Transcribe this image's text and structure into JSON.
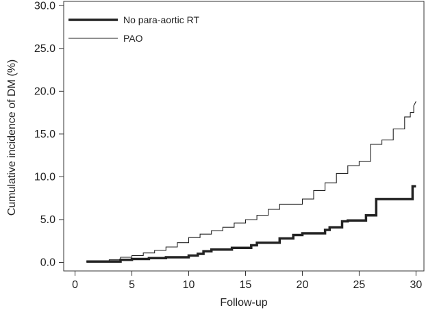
{
  "chart_data": {
    "type": "line",
    "title": "",
    "xlabel": "Follow-up",
    "ylabel": "Cumulative incidence of DM (%)",
    "xlim": [
      -1,
      30.7
    ],
    "ylim": [
      -1.0,
      30.5
    ],
    "xticks": [
      0,
      5,
      10,
      15,
      20,
      25,
      30
    ],
    "yticks": [
      0.0,
      5.0,
      10.0,
      15.0,
      20.0,
      25.0,
      30.0
    ],
    "xtick_labels": [
      "0",
      "5",
      "10",
      "15",
      "20",
      "25",
      "30"
    ],
    "ytick_labels": [
      "0.0",
      "5.0",
      "10.0",
      "15.0",
      "20.0",
      "25.0",
      "30.0"
    ],
    "grid": false,
    "legend_position": "top-left",
    "series": [
      {
        "name": "No para-aortic RT",
        "style": "thick",
        "color": "#222222",
        "x": [
          1.0,
          4.0,
          4.0,
          5.0,
          5.0,
          6.5,
          6.5,
          8.0,
          8.0,
          10.0,
          10.0,
          10.8,
          10.8,
          11.3,
          11.3,
          12.0,
          12.0,
          13.8,
          13.8,
          15.5,
          15.5,
          16.0,
          16.0,
          18.0,
          18.0,
          19.2,
          19.2,
          20.0,
          20.0,
          22.0,
          22.0,
          22.4,
          22.4,
          23.5,
          23.5,
          24.0,
          24.0,
          25.6,
          25.6,
          26.5,
          26.5,
          29.7,
          29.7,
          30.0
        ],
        "y": [
          0.1,
          0.1,
          0.3,
          0.3,
          0.4,
          0.4,
          0.5,
          0.5,
          0.6,
          0.6,
          0.8,
          0.8,
          1.0,
          1.0,
          1.3,
          1.3,
          1.5,
          1.5,
          1.7,
          1.7,
          2.0,
          2.0,
          2.3,
          2.3,
          2.8,
          2.8,
          3.2,
          3.2,
          3.4,
          3.4,
          3.8,
          3.8,
          4.1,
          4.1,
          4.8,
          4.8,
          4.9,
          4.9,
          5.5,
          5.5,
          7.4,
          7.4,
          8.9,
          8.9
        ]
      },
      {
        "name": "PAO",
        "style": "thin",
        "color": "#222222",
        "x": [
          1.0,
          3.0,
          3.0,
          4.0,
          4.0,
          5.0,
          5.0,
          6.0,
          6.0,
          7.0,
          7.0,
          8.0,
          8.0,
          9.0,
          9.0,
          10.0,
          10.0,
          11.0,
          11.0,
          12.0,
          12.0,
          13.0,
          13.0,
          14.0,
          14.0,
          15.0,
          15.0,
          16.0,
          16.0,
          17.0,
          17.0,
          18.0,
          18.0,
          19.0,
          19.0,
          20.0,
          20.0,
          21.0,
          21.0,
          22.0,
          22.0,
          23.0,
          23.0,
          24.0,
          24.0,
          25.0,
          25.0,
          26.0,
          26.0,
          27.0,
          27.0,
          28.0,
          28.0,
          29.0,
          29.0,
          29.5,
          29.5,
          29.8,
          29.8,
          30.0
        ],
        "y": [
          0.1,
          0.1,
          0.3,
          0.3,
          0.6,
          0.6,
          0.8,
          0.8,
          1.1,
          1.1,
          1.4,
          1.4,
          1.8,
          1.8,
          2.3,
          2.3,
          2.9,
          2.9,
          3.3,
          3.3,
          3.7,
          3.7,
          4.1,
          4.1,
          4.6,
          4.6,
          5.0,
          5.0,
          5.5,
          5.5,
          6.2,
          6.2,
          6.8,
          6.8,
          6.8,
          6.8,
          7.4,
          7.4,
          8.4,
          8.4,
          9.3,
          9.3,
          10.4,
          10.4,
          11.3,
          11.3,
          11.8,
          11.8,
          13.8,
          13.8,
          14.3,
          14.3,
          15.6,
          15.6,
          17.0,
          17.0,
          17.5,
          17.5,
          18.3,
          18.8
        ]
      }
    ]
  }
}
